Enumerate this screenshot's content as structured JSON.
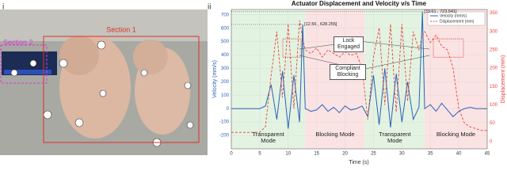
{
  "panel_labels": [
    "i",
    "ii"
  ],
  "photo": {
    "labels": [
      "Section 1",
      "Section 2"
    ]
  },
  "chart_data": {
    "type": "line",
    "title": "Actuator Displacement and Velocity  v/s Time",
    "x_label": "Time (s)",
    "y_label": "Velocity (mm/s)",
    "y2_label": "Displacement (mm)",
    "x": [
      0,
      1,
      2,
      3,
      4,
      5,
      6,
      7,
      8,
      9,
      10,
      11,
      12,
      12.56,
      13,
      14,
      15,
      16,
      17,
      18,
      19,
      20,
      21,
      22,
      23,
      24,
      25,
      26,
      27,
      28,
      29,
      30,
      31,
      32,
      33,
      33.61,
      34,
      35,
      36,
      37,
      38,
      39,
      40,
      41,
      42,
      43,
      44,
      45
    ],
    "series": [
      {
        "name": "Velocity (mm/s)",
        "color": "#2a62b8",
        "axis": "y",
        "values": [
          0,
          0,
          0,
          0,
          0,
          0,
          20,
          180,
          -80,
          280,
          -150,
          250,
          -100,
          628.255,
          0,
          -20,
          -10,
          30,
          -20,
          10,
          -30,
          20,
          -10,
          0,
          20,
          -60,
          250,
          -120,
          300,
          -140,
          260,
          -100,
          200,
          -80,
          10,
          723.541,
          0,
          30,
          -20,
          40,
          -10,
          -60,
          -20,
          0,
          10,
          0,
          0,
          0
        ]
      },
      {
        "name": "Displacement (mm)",
        "color": "#e8413a",
        "axis": "y2",
        "dashed": true,
        "values": [
          25,
          25,
          25,
          25,
          25,
          25,
          40,
          180,
          300,
          120,
          320,
          90,
          330,
          280,
          250,
          240,
          255,
          230,
          250,
          240,
          230,
          245,
          235,
          240,
          200,
          60,
          230,
          310,
          100,
          320,
          80,
          320,
          110,
          300,
          250,
          290,
          300,
          270,
          290,
          260,
          250,
          200,
          90,
          50,
          40,
          35,
          30,
          30
        ]
      }
    ],
    "xlim": [
      0,
      45
    ],
    "xticks": [
      0,
      5,
      10,
      15,
      20,
      25,
      30,
      35,
      40,
      45
    ],
    "ylim": [
      -300,
      740
    ],
    "yticks": [
      -200,
      -100,
      0,
      100,
      200,
      300,
      400,
      500,
      600,
      700
    ],
    "y2lim": [
      -20,
      360
    ],
    "y2ticks": [
      0,
      50,
      100,
      150,
      200,
      250,
      300,
      350
    ],
    "grid": true,
    "legend": "upper right",
    "regions": [
      {
        "start": 0,
        "end": 13,
        "label": "Transparent Mode",
        "color": "#e3f3e1"
      },
      {
        "start": 13,
        "end": 23.5,
        "label": "Blocking Mode",
        "color": "#fbe3e3"
      },
      {
        "start": 23.5,
        "end": 34,
        "label": "Transparent Mode",
        "color": "#e3f3e1"
      },
      {
        "start": 34,
        "end": 45,
        "label": "Blocking Mode",
        "color": "#fbe3e3"
      }
    ],
    "annotations": [
      "[12.56 , 628.255]",
      "[33.61 , 723.541]",
      "Lock Engaged",
      "Compliant Blocking"
    ]
  }
}
